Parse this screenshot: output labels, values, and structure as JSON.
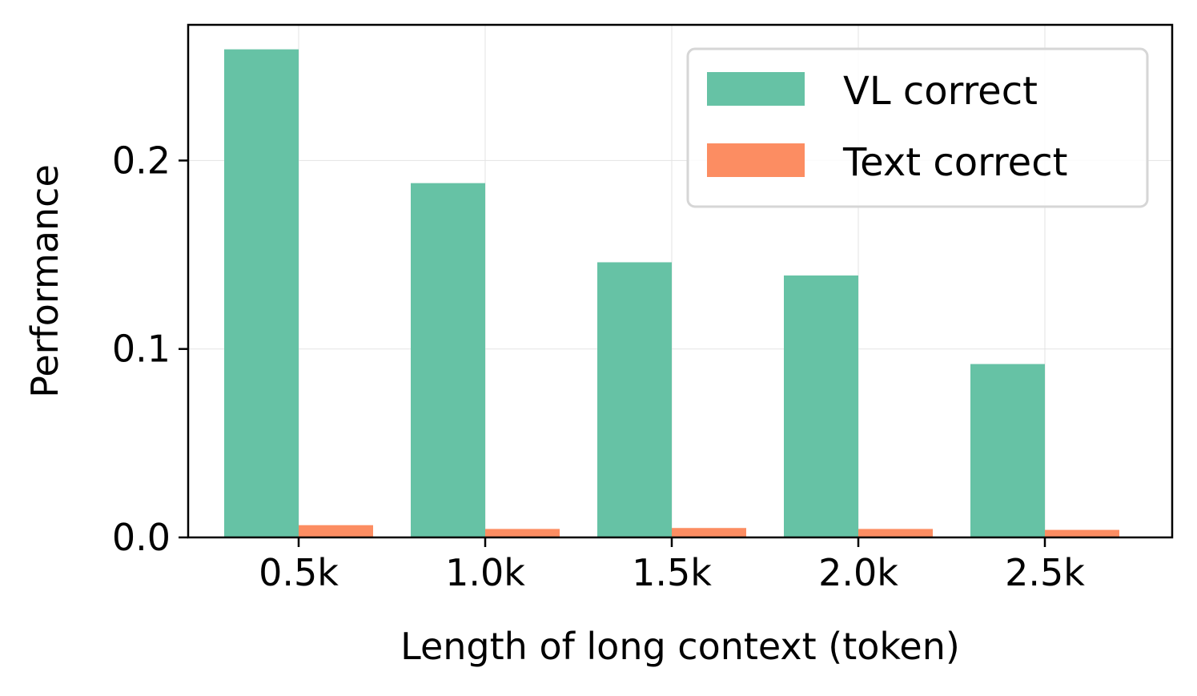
{
  "chart_data": {
    "type": "bar",
    "xlabel": "Length of long context (token)",
    "ylabel": "Performance",
    "categories": [
      "0.5k",
      "1.0k",
      "1.5k",
      "2.0k",
      "2.5k"
    ],
    "series": [
      {
        "name": "VL correct",
        "color": "#66c2a5",
        "values": [
          0.259,
          0.188,
          0.146,
          0.139,
          0.092
        ]
      },
      {
        "name": "Text correct",
        "color": "#fc8d62",
        "values": [
          0.0065,
          0.0045,
          0.005,
          0.0045,
          0.004
        ]
      }
    ],
    "ylim": [
      0,
      0.272
    ],
    "yticks": [
      "0.0",
      "0.1",
      "0.2"
    ],
    "grid": true,
    "legend_position": "top-right"
  }
}
